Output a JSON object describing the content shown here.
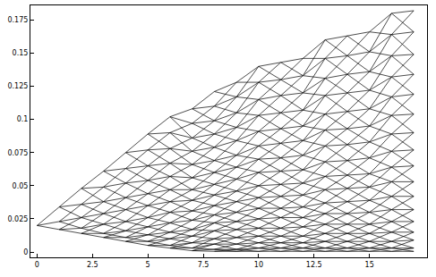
{
  "chart_data": {
    "type": "lattice",
    "color": "#000000",
    "x": [
      0,
      1,
      2,
      3,
      4,
      5,
      6,
      7,
      8,
      9,
      10,
      11,
      12,
      13,
      14,
      15,
      16,
      17
    ],
    "nodes": [
      [
        0.02
      ],
      [
        0.017,
        0.023,
        0.034
      ],
      [
        0.014,
        0.018,
        0.026,
        0.036,
        0.048
      ],
      [
        0.011,
        0.014,
        0.021,
        0.029,
        0.038,
        0.049,
        0.061
      ],
      [
        0.008,
        0.011,
        0.016,
        0.023,
        0.032,
        0.041,
        0.052,
        0.063,
        0.075
      ],
      [
        0.005,
        0.008,
        0.013,
        0.019,
        0.026,
        0.035,
        0.044,
        0.054,
        0.065,
        0.077,
        0.089
      ],
      [
        0.003,
        0.005,
        0.01,
        0.015,
        0.022,
        0.03,
        0.038,
        0.047,
        0.057,
        0.067,
        0.078,
        0.09,
        0.102
      ],
      [
        0.001,
        0.003,
        0.007,
        0.012,
        0.017,
        0.024,
        0.031,
        0.039,
        0.047,
        0.056,
        0.066,
        0.076,
        0.086,
        0.097,
        0.108
      ],
      [
        0.0005,
        0.002,
        0.006,
        0.01,
        0.016,
        0.022,
        0.028,
        0.035,
        0.043,
        0.051,
        0.06,
        0.069,
        0.079,
        0.089,
        0.099,
        0.11,
        0.121
      ],
      [
        0.0005,
        0.002,
        0.006,
        0.011,
        0.017,
        0.023,
        0.03,
        0.038,
        0.046,
        0.055,
        0.064,
        0.073,
        0.084,
        0.094,
        0.105,
        0.117,
        0.128
      ],
      [
        0.0005,
        0.003,
        0.007,
        0.012,
        0.018,
        0.025,
        0.033,
        0.041,
        0.05,
        0.06,
        0.07,
        0.08,
        0.091,
        0.103,
        0.115,
        0.128,
        0.14
      ],
      [
        0.0005,
        0.003,
        0.007,
        0.012,
        0.018,
        0.026,
        0.033,
        0.042,
        0.051,
        0.061,
        0.071,
        0.082,
        0.093,
        0.105,
        0.118,
        0.13,
        0.143
      ],
      [
        0.0005,
        0.003,
        0.007,
        0.012,
        0.019,
        0.026,
        0.034,
        0.043,
        0.052,
        0.062,
        0.073,
        0.084,
        0.095,
        0.107,
        0.12,
        0.133,
        0.146
      ],
      [
        0.0005,
        0.003,
        0.008,
        0.014,
        0.021,
        0.029,
        0.037,
        0.047,
        0.057,
        0.068,
        0.08,
        0.092,
        0.104,
        0.118,
        0.131,
        0.146,
        0.16
      ],
      [
        0.0005,
        0.003,
        0.008,
        0.014,
        0.021,
        0.029,
        0.038,
        0.048,
        0.058,
        0.069,
        0.081,
        0.093,
        0.106,
        0.12,
        0.134,
        0.148,
        0.163
      ],
      [
        0.0005,
        0.003,
        0.008,
        0.014,
        0.021,
        0.03,
        0.039,
        0.049,
        0.059,
        0.071,
        0.083,
        0.095,
        0.108,
        0.122,
        0.136,
        0.151,
        0.166
      ],
      [
        0.0005,
        0.003,
        0.008,
        0.015,
        0.023,
        0.032,
        0.042,
        0.053,
        0.064,
        0.076,
        0.089,
        0.103,
        0.117,
        0.132,
        0.148,
        0.164,
        0.18
      ],
      [
        0.0005,
        0.003,
        0.009,
        0.015,
        0.023,
        0.032,
        0.042,
        0.053,
        0.065,
        0.077,
        0.09,
        0.104,
        0.119,
        0.134,
        0.149,
        0.166,
        0.182
      ]
    ],
    "xlim": [
      -0.3,
      17.6
    ],
    "ylim": [
      -0.004,
      0.186
    ],
    "xticks": [
      0,
      2.5,
      5,
      7.5,
      10,
      12.5,
      15
    ],
    "yticks": [
      0,
      0.025,
      0.05,
      0.075,
      0.1,
      0.125,
      0.15,
      0.175
    ],
    "grid": false
  }
}
